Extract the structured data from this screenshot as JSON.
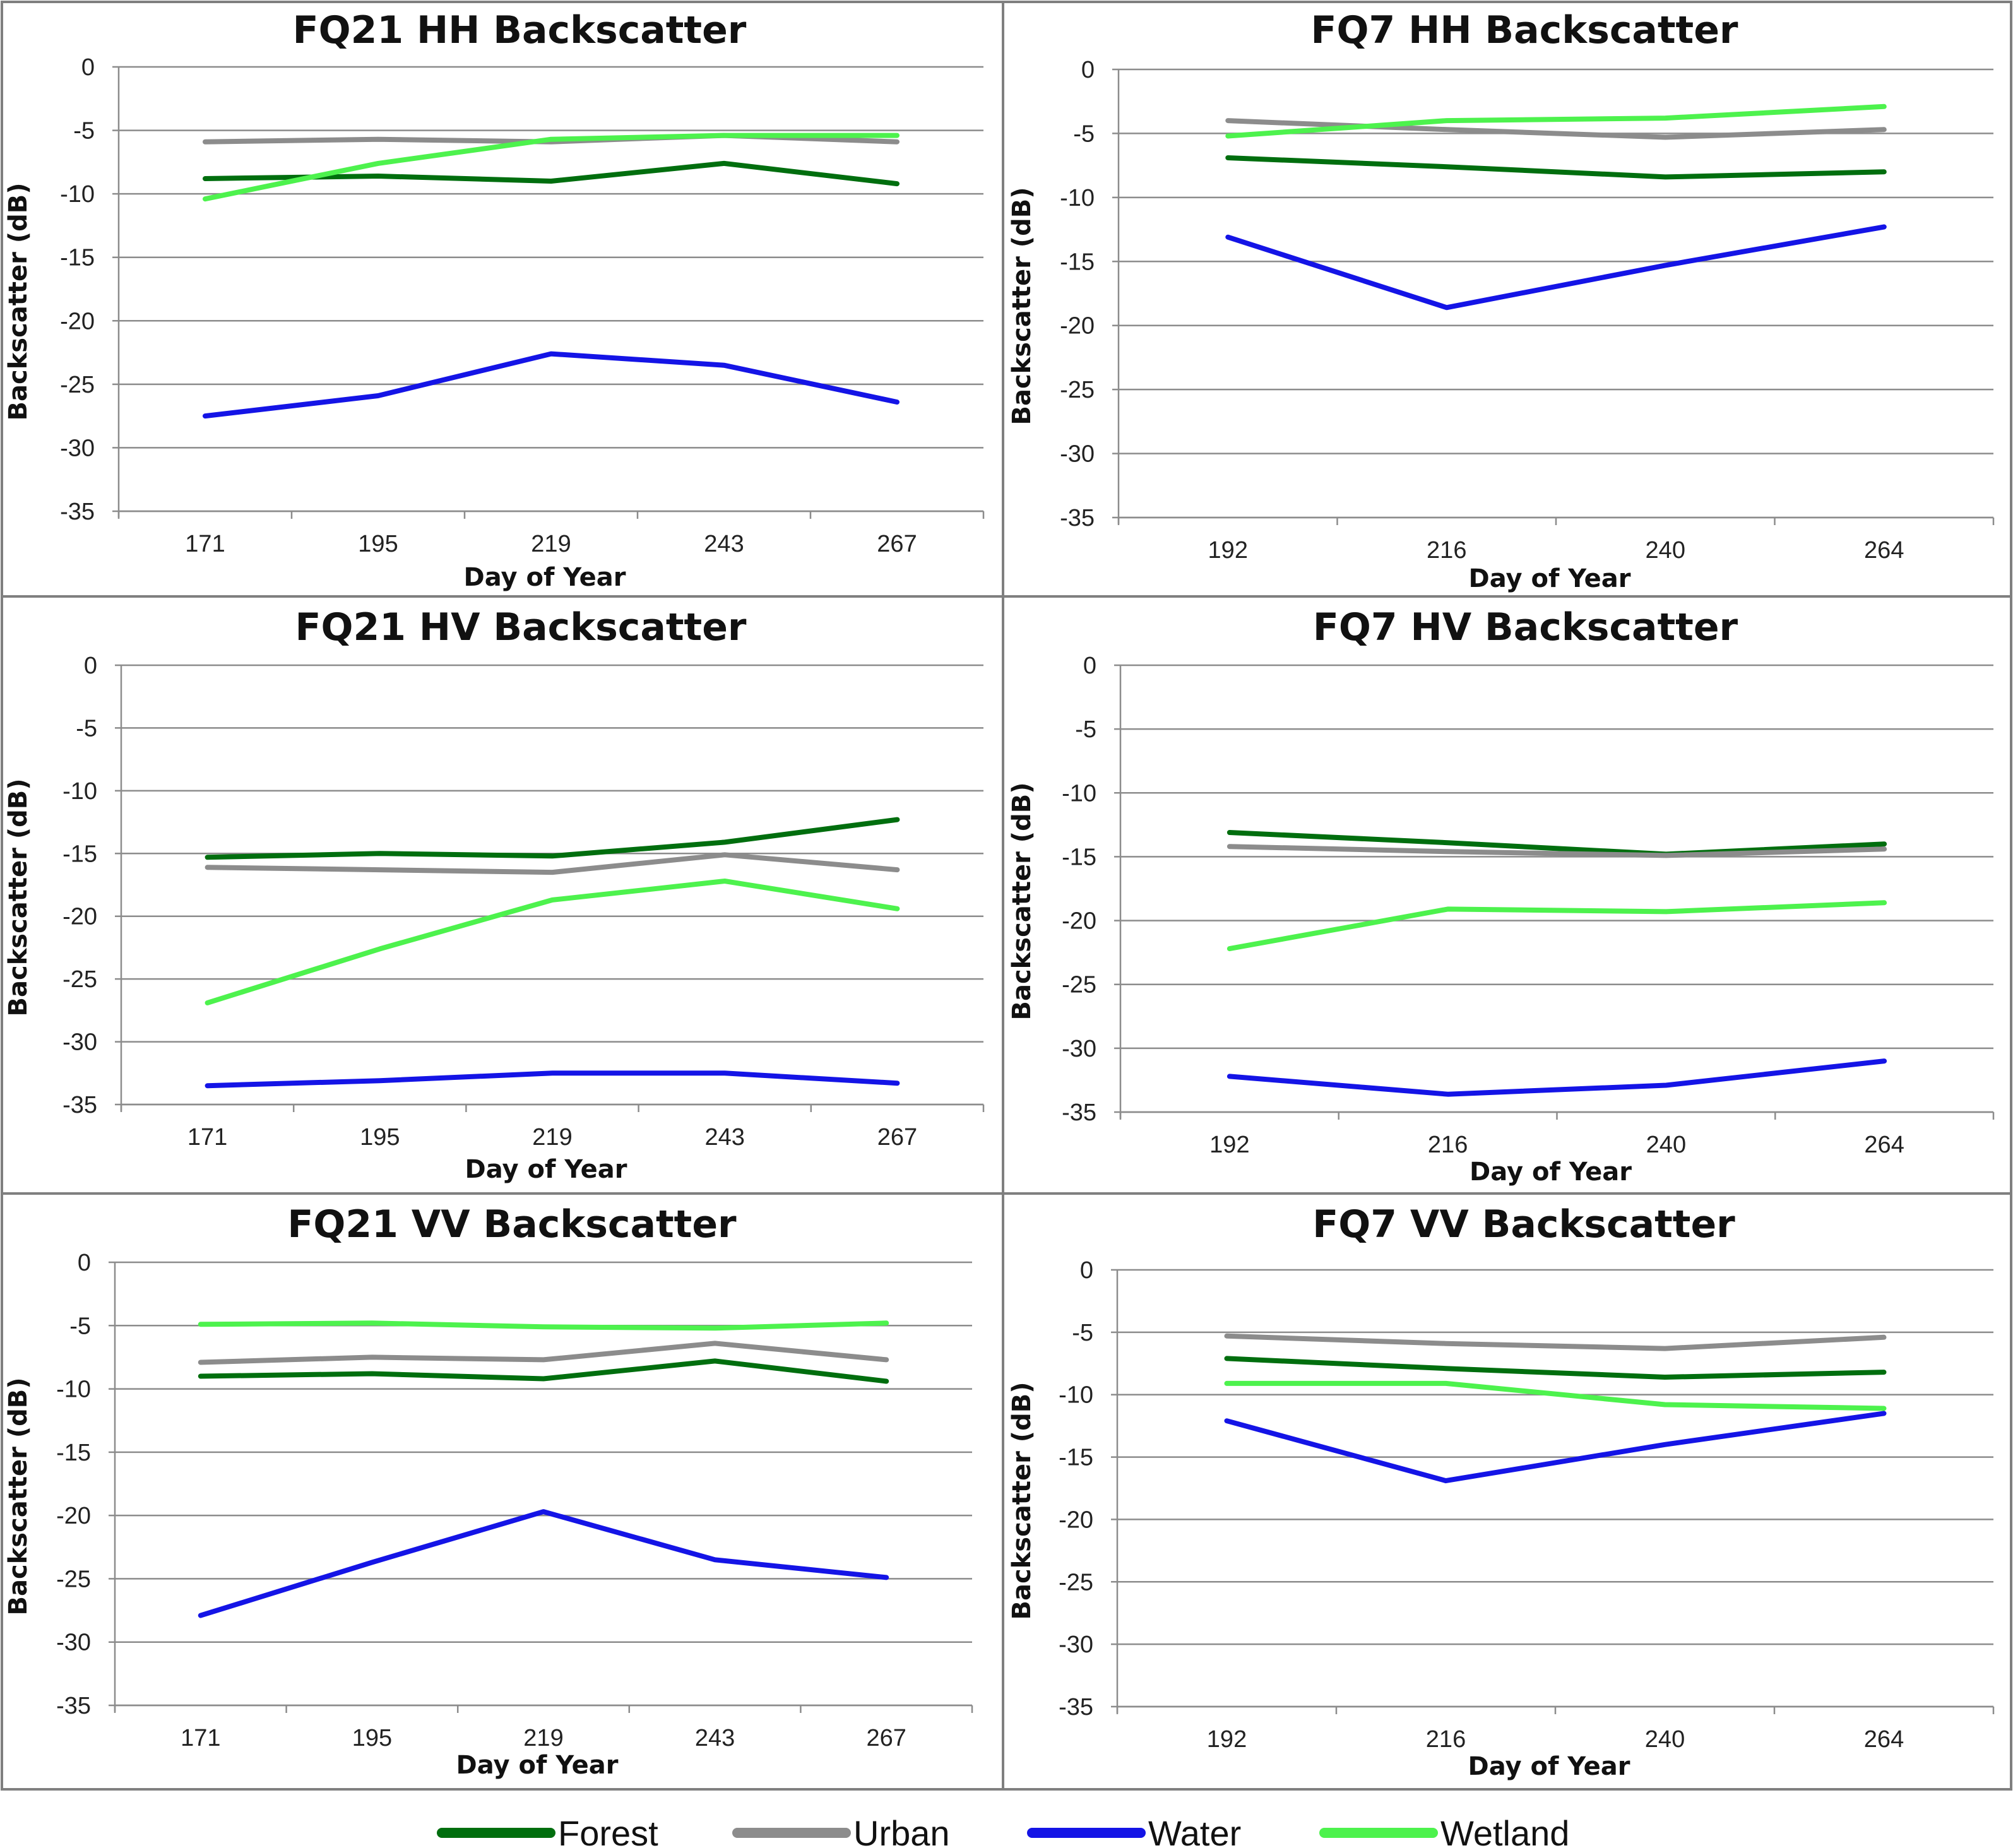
{
  "colors": {
    "Forest": "#006e0e",
    "Urban": "#8c8c8c",
    "Water": "#1414e6",
    "Wetland": "#4df24d"
  },
  "legend": {
    "placement": "bottom",
    "entries": [
      "Forest",
      "Urban",
      "Water",
      "Wetland"
    ]
  },
  "chart_data": [
    {
      "type": "line",
      "title": "FQ21 HH Backscatter",
      "xlabel": "Day of Year",
      "ylabel": "Backscatter (dB)",
      "ylim": [
        -35,
        0
      ],
      "yticks": [
        0,
        -5,
        -10,
        -15,
        -20,
        -25,
        -30,
        -35
      ],
      "categories": [
        "171",
        "195",
        "219",
        "243",
        "267"
      ],
      "series": [
        {
          "name": "Forest",
          "values": [
            -8.8,
            -8.6,
            -9.0,
            -7.6,
            -9.2
          ]
        },
        {
          "name": "Urban",
          "values": [
            -5.9,
            -5.7,
            -5.9,
            -5.4,
            -5.9
          ]
        },
        {
          "name": "Water",
          "values": [
            -27.5,
            -25.9,
            -22.6,
            -23.5,
            -26.4
          ]
        },
        {
          "name": "Wetland",
          "values": [
            -10.4,
            -7.6,
            -5.7,
            -5.4,
            -5.4
          ]
        }
      ]
    },
    {
      "type": "line",
      "title": "FQ7 HH Backscatter",
      "xlabel": "Day of Year",
      "ylabel": "Backscatter (dB)",
      "ylim": [
        -35,
        0
      ],
      "yticks": [
        0,
        -5,
        -10,
        -15,
        -20,
        -25,
        -30,
        -35
      ],
      "categories": [
        "192",
        "216",
        "240",
        "264"
      ],
      "series": [
        {
          "name": "Forest",
          "values": [
            -6.9,
            -7.6,
            -8.4,
            -8.0
          ]
        },
        {
          "name": "Urban",
          "values": [
            -4.0,
            -4.7,
            -5.3,
            -4.7
          ]
        },
        {
          "name": "Water",
          "values": [
            -13.1,
            -18.6,
            -15.3,
            -12.3
          ]
        },
        {
          "name": "Wetland",
          "values": [
            -5.2,
            -4.0,
            -3.8,
            -2.9
          ]
        }
      ]
    },
    {
      "type": "line",
      "title": "FQ21 HV Backscatter",
      "xlabel": "Day of Year",
      "ylabel": "Backscatter (dB)",
      "ylim": [
        -35,
        0
      ],
      "yticks": [
        0,
        -5,
        -10,
        -15,
        -20,
        -25,
        -30,
        -35
      ],
      "categories": [
        "171",
        "195",
        "219",
        "243",
        "267"
      ],
      "series": [
        {
          "name": "Forest",
          "values": [
            -15.3,
            -15.0,
            -15.2,
            -14.1,
            -12.3
          ]
        },
        {
          "name": "Urban",
          "values": [
            -16.1,
            -16.3,
            -16.5,
            -15.1,
            -16.3
          ]
        },
        {
          "name": "Water",
          "values": [
            -33.5,
            -33.1,
            -32.5,
            -32.5,
            -33.3
          ]
        },
        {
          "name": "Wetland",
          "values": [
            -26.9,
            -22.6,
            -18.7,
            -17.2,
            -19.4
          ]
        }
      ]
    },
    {
      "type": "line",
      "title": "FQ7 HV Backscatter",
      "xlabel": "Day of Year",
      "ylabel": "Backscatter (dB)",
      "ylim": [
        -35,
        0
      ],
      "yticks": [
        0,
        -5,
        -10,
        -15,
        -20,
        -25,
        -30,
        -35
      ],
      "categories": [
        "192",
        "216",
        "240",
        "264"
      ],
      "series": [
        {
          "name": "Forest",
          "values": [
            -13.1,
            -13.9,
            -14.8,
            -14.0
          ]
        },
        {
          "name": "Urban",
          "values": [
            -14.2,
            -14.6,
            -14.9,
            -14.4
          ]
        },
        {
          "name": "Water",
          "values": [
            -32.2,
            -33.6,
            -32.9,
            -31.0
          ]
        },
        {
          "name": "Wetland",
          "values": [
            -22.2,
            -19.1,
            -19.3,
            -18.6
          ]
        }
      ]
    },
    {
      "type": "line",
      "title": "FQ21 VV Backscatter",
      "xlabel": "Day of Year",
      "ylabel": "Backscatter (dB)",
      "ylim": [
        -35,
        0
      ],
      "yticks": [
        0,
        -5,
        -10,
        -15,
        -20,
        -25,
        -30,
        -35
      ],
      "categories": [
        "171",
        "195",
        "219",
        "243",
        "267"
      ],
      "series": [
        {
          "name": "Forest",
          "values": [
            -9.0,
            -8.8,
            -9.2,
            -7.8,
            -9.4
          ]
        },
        {
          "name": "Urban",
          "values": [
            -7.9,
            -7.5,
            -7.7,
            -6.4,
            -7.7
          ]
        },
        {
          "name": "Water",
          "values": [
            -27.9,
            -23.7,
            -19.7,
            -23.5,
            -24.9
          ]
        },
        {
          "name": "Wetland",
          "values": [
            -4.9,
            -4.8,
            -5.1,
            -5.2,
            -4.8
          ]
        }
      ]
    },
    {
      "type": "line",
      "title": "FQ7 VV Backscatter",
      "xlabel": "Day of Year",
      "ylabel": "Backscatter (dB)",
      "ylim": [
        -35,
        0
      ],
      "yticks": [
        0,
        -5,
        -10,
        -15,
        -20,
        -25,
        -30,
        -35
      ],
      "categories": [
        "192",
        "216",
        "240",
        "264"
      ],
      "series": [
        {
          "name": "Forest",
          "values": [
            -7.1,
            -7.9,
            -8.6,
            -8.2
          ]
        },
        {
          "name": "Urban",
          "values": [
            -5.3,
            -5.9,
            -6.3,
            -5.4
          ]
        },
        {
          "name": "Water",
          "values": [
            -12.1,
            -16.9,
            -14.0,
            -11.5
          ]
        },
        {
          "name": "Wetland",
          "values": [
            -9.1,
            -9.1,
            -10.8,
            -11.1
          ]
        }
      ]
    }
  ]
}
